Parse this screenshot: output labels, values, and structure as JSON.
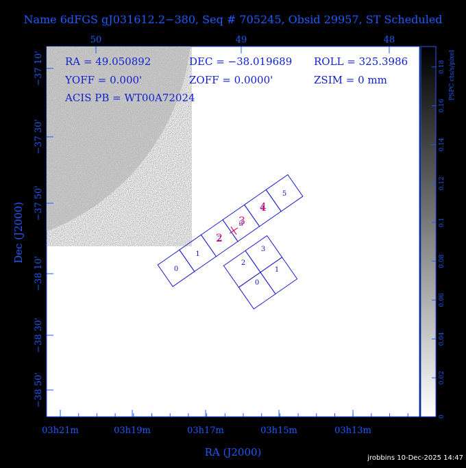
{
  "header": {
    "title": "Name 6dFGS gJ031612.2−380, Seq # 705245, Obsid 29957, ST Scheduled"
  },
  "info": [
    "RA = 49.050892",
    "DEC = −38.019689",
    "ROLL = 325.3986",
    "YOFF =   0.000'",
    "ZOFF =  0.0000'",
    "ZSIM = 0 mm",
    "ACIS PB = WT00A72024"
  ],
  "axes": {
    "x_label": "RA (J2000)",
    "y_label": "Dec (J2000)",
    "x_ticks": [
      "03h21m",
      "03h19m",
      "03h17m",
      "03h15m",
      "03h13m"
    ],
    "y_ticks": [
      "−37 10'",
      "−37 30'",
      "−37 50'",
      "−38 10'",
      "−38 30'",
      "−38 50'"
    ],
    "top_ticks": [
      "50",
      "49",
      "48"
    ]
  },
  "colorbar": {
    "label": "PSPC cts/s/pixel",
    "ticks": [
      "0",
      "0.02",
      "0.04",
      "0.06",
      "0.08",
      "0.1",
      "0.12",
      "0.14",
      "0.16",
      "0.18"
    ]
  },
  "chips": {
    "s_array": [
      "0",
      "1",
      "2",
      "3",
      "4",
      "5"
    ],
    "i_array": [
      "2",
      "3",
      "1",
      "0"
    ]
  },
  "aimpoint_labels": [
    "2",
    "3",
    "4"
  ],
  "footer": "jrobbins 10-Dec-2025 14:47"
}
